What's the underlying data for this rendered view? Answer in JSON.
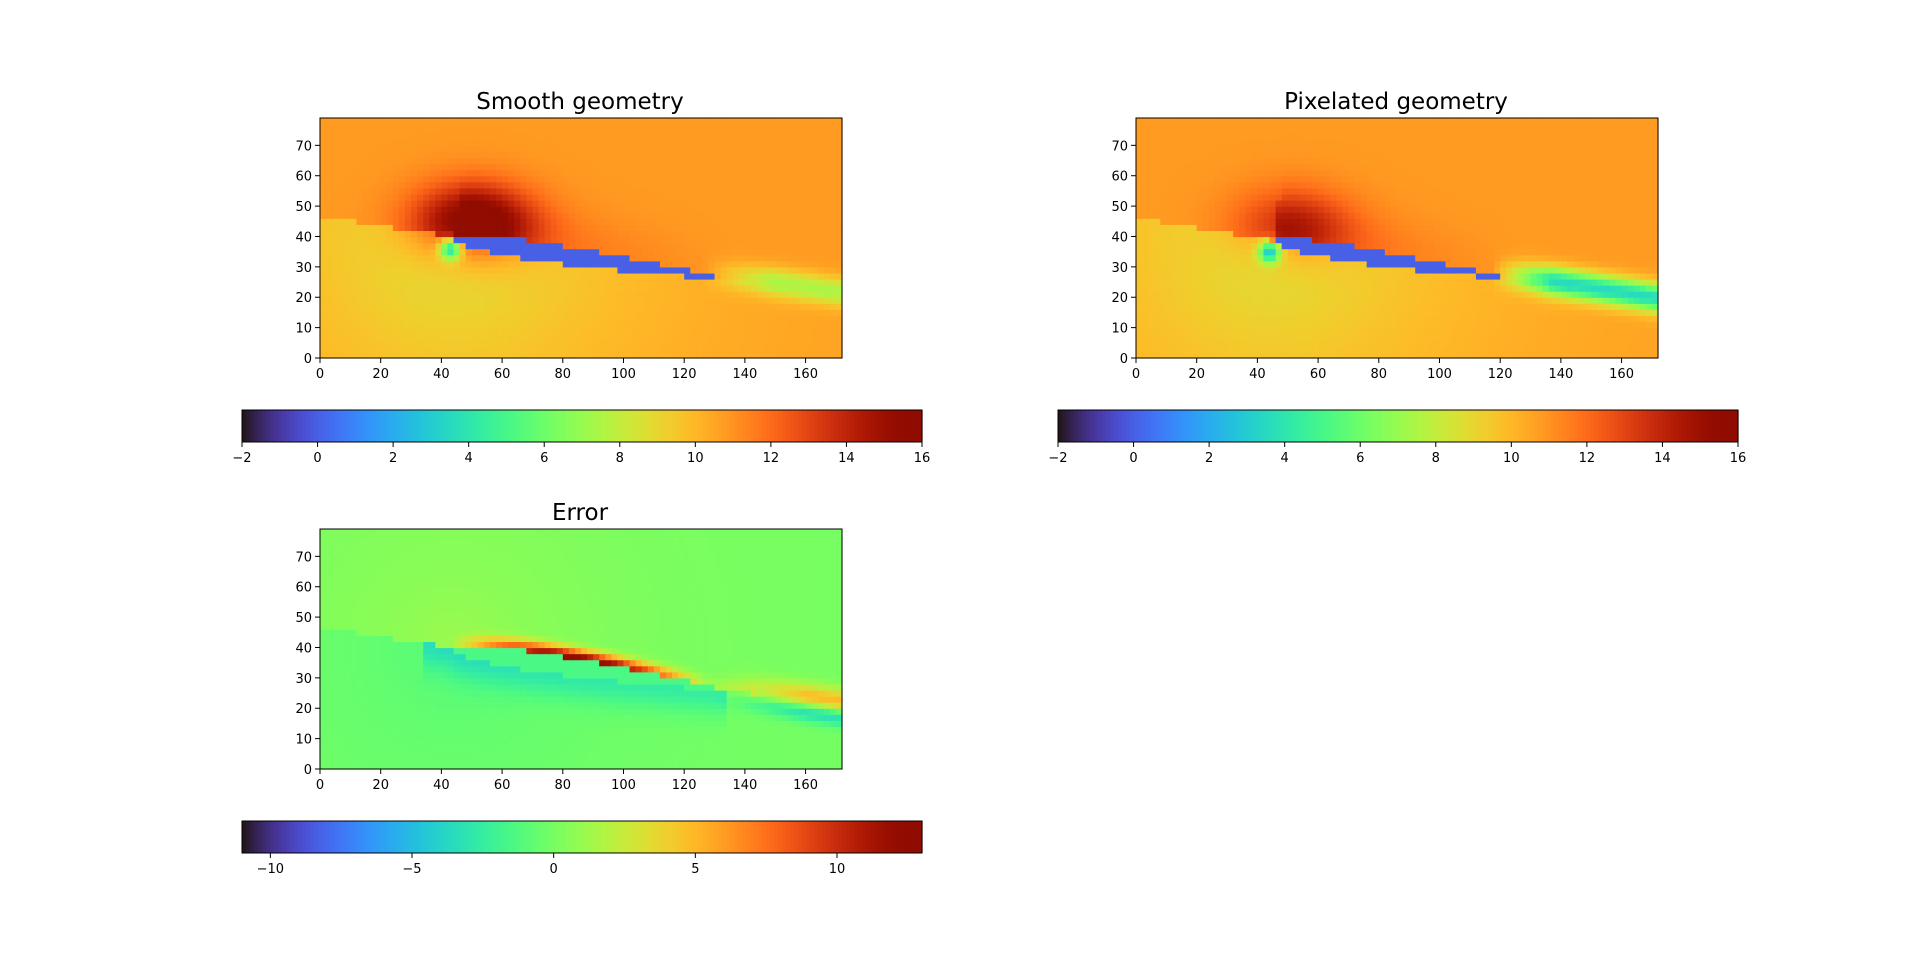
{
  "figure": {
    "background": "#ffffff",
    "colormap": "turbo"
  },
  "chart_data": [
    {
      "type": "heatmap",
      "title": "Smooth geometry",
      "xlim": [
        0,
        172
      ],
      "ylim": [
        0,
        79
      ],
      "x_ticks": [
        "0",
        "20",
        "40",
        "60",
        "80",
        "100",
        "120",
        "140",
        "160"
      ],
      "y_ticks": [
        "0",
        "10",
        "20",
        "30",
        "40",
        "50",
        "60",
        "70"
      ],
      "colorbar": {
        "orientation": "horizontal",
        "range": [
          -2,
          16
        ],
        "ticks": [
          "−2",
          "0",
          "2",
          "4",
          "6",
          "8",
          "10",
          "12",
          "14",
          "16"
        ]
      },
      "field": {
        "freestream": 10.8,
        "leading_edge": [
          44,
          40
        ],
        "trailing_edge": [
          135,
          26
        ],
        "inside_value": 0,
        "high_region_peak": 16,
        "wake_low": 7.5,
        "upstream_low": 8.2
      }
    },
    {
      "type": "heatmap",
      "title": "Pixelated geometry",
      "xlim": [
        0,
        172
      ],
      "ylim": [
        0,
        79
      ],
      "x_ticks": [
        "0",
        "20",
        "40",
        "60",
        "80",
        "100",
        "120",
        "140",
        "160"
      ],
      "y_ticks": [
        "0",
        "10",
        "20",
        "30",
        "40",
        "50",
        "60",
        "70"
      ],
      "colorbar": {
        "orientation": "horizontal",
        "range": [
          -2,
          16
        ],
        "ticks": [
          "−2",
          "0",
          "2",
          "4",
          "6",
          "8",
          "10",
          "12",
          "14",
          "16"
        ]
      },
      "field": {
        "freestream": 10.8,
        "leading_edge": [
          45,
          39
        ],
        "trailing_edge": [
          125,
          26
        ],
        "inside_value": 0,
        "high_region_peak": 13.5,
        "wake_low": 3.5,
        "upstream_low": 8.2
      }
    },
    {
      "type": "heatmap",
      "title": "Error",
      "xlim": [
        0,
        172
      ],
      "ylim": [
        0,
        79
      ],
      "x_ticks": [
        "0",
        "20",
        "40",
        "60",
        "80",
        "100",
        "120",
        "140",
        "160"
      ],
      "y_ticks": [
        "0",
        "10",
        "20",
        "30",
        "40",
        "50",
        "60",
        "70"
      ],
      "colorbar": {
        "orientation": "horizontal",
        "range": [
          -11,
          13
        ],
        "ticks": [
          "−10",
          "−5",
          "0",
          "5",
          "10"
        ]
      },
      "field": {
        "baseline": 0,
        "upper_peak": 12,
        "lower_band": -3.5,
        "wake_low": -4,
        "leading_edge": [
          44,
          40
        ]
      }
    }
  ]
}
